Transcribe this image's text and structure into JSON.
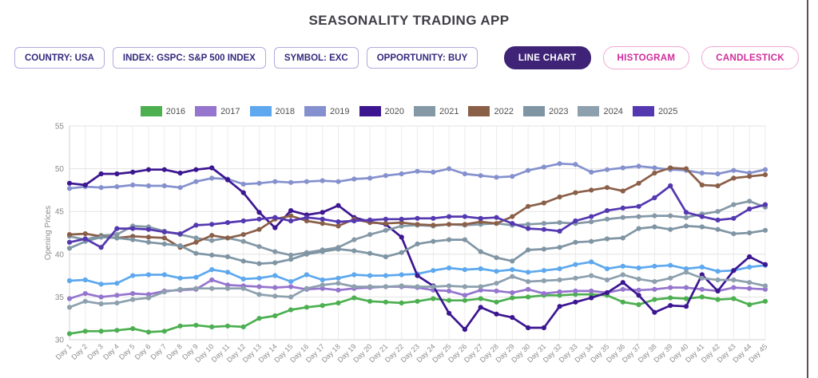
{
  "app": {
    "title": "SEASONALITY TRADING APP"
  },
  "filters": [
    {
      "key": "country",
      "label": "COUNTRY:",
      "value": "USA"
    },
    {
      "key": "index",
      "label": "INDEX:",
      "value": "GSPC: S&P 500 INDEX"
    },
    {
      "key": "symbol",
      "label": "SYMBOL:",
      "value": "EXC"
    },
    {
      "key": "opportunity",
      "label": "OPPORTUNITY:",
      "value": "BUY"
    }
  ],
  "view_buttons": [
    {
      "key": "line-chart",
      "label": "LINE CHART",
      "active": true
    },
    {
      "key": "histogram",
      "label": "HISTOGRAM",
      "active": false
    },
    {
      "key": "candlestick",
      "label": "CANDLESTICK",
      "active": false
    }
  ],
  "colors": {
    "title_text": "#3f3f46",
    "chip_border": "#b5a8de",
    "chip_text": "#33297d",
    "active_button_bg": "#3e2376",
    "pink_text": "#d12b9b",
    "pink_border": "#f2a8d2",
    "axis_text": "#8b8b8b",
    "grid_h": "#e3e3e3",
    "grid_v": "#ececec",
    "axis_line": "#d0d0d0"
  },
  "chart_data": {
    "type": "line",
    "title": "",
    "xlabel": "",
    "ylabel": "Opening Prices",
    "ylim": [
      30,
      55
    ],
    "yticks": [
      30,
      35,
      40,
      45,
      50,
      55
    ],
    "grid": true,
    "legend_position": "top",
    "x_categories": [
      "Day 1",
      "Day 2",
      "Day 3",
      "Day 4",
      "Day 5",
      "Day 6",
      "Day 7",
      "Day 8",
      "Day 9",
      "Day 10",
      "Day 11",
      "Day 12",
      "Day 13",
      "Day 14",
      "Day 15",
      "Day 16",
      "Day 17",
      "Day 18",
      "Day 19",
      "Day 20",
      "Day 21",
      "Day 22",
      "Day 23",
      "Day 24",
      "Day 25",
      "Day 26",
      "Day 27",
      "Day 28",
      "Day 29",
      "Day 30",
      "Day 31",
      "Day 32",
      "Day 33",
      "Day 34",
      "Day 35",
      "Day 36",
      "Day 37",
      "Day 38",
      "Day 39",
      "Day 40",
      "Day 41",
      "Day 42",
      "Day 43",
      "Day 44",
      "Day 45"
    ],
    "series": [
      {
        "name": "2016",
        "color": "#4caf50",
        "values": [
          30.7,
          31.0,
          31.0,
          31.1,
          31.3,
          30.9,
          31.0,
          31.6,
          31.7,
          31.5,
          31.6,
          31.5,
          32.5,
          32.8,
          33.5,
          33.8,
          34.0,
          34.3,
          34.9,
          34.5,
          34.4,
          34.3,
          34.5,
          34.8,
          34.6,
          34.6,
          34.8,
          34.4,
          34.9,
          35.0,
          35.2,
          35.2,
          35.3,
          35.3,
          35.2,
          34.4,
          34.1,
          34.7,
          34.9,
          34.8,
          35.0,
          34.7,
          34.8,
          34.1,
          34.5
        ]
      },
      {
        "name": "2017",
        "color": "#9575cd",
        "values": [
          34.8,
          35.4,
          35.0,
          35.2,
          35.4,
          35.3,
          35.7,
          35.8,
          35.9,
          37.0,
          36.4,
          36.3,
          36.2,
          36.1,
          36.2,
          35.9,
          36.0,
          35.8,
          36.0,
          36.1,
          36.2,
          36.2,
          36.1,
          35.8,
          35.7,
          35.2,
          35.8,
          35.7,
          35.5,
          35.9,
          35.4,
          35.6,
          35.7,
          35.7,
          35.5,
          35.9,
          35.8,
          35.9,
          36.1,
          36.1,
          35.9,
          35.7,
          36.1,
          36.0,
          35.9
        ]
      },
      {
        "name": "2018",
        "color": "#5da8ee",
        "values": [
          36.9,
          37.0,
          36.5,
          36.6,
          37.5,
          37.6,
          37.6,
          37.2,
          37.3,
          38.2,
          37.9,
          37.1,
          37.2,
          37.5,
          36.8,
          37.6,
          37.0,
          37.2,
          37.6,
          37.5,
          37.5,
          37.6,
          37.7,
          38.1,
          38.4,
          38.2,
          38.3,
          38.0,
          38.2,
          37.9,
          38.1,
          38.3,
          38.8,
          39.1,
          38.3,
          38.6,
          38.4,
          38.6,
          38.7,
          38.3,
          38.5,
          38.0,
          38.1,
          38.5,
          38.7
        ]
      },
      {
        "name": "2019",
        "color": "#8591ce",
        "values": [
          47.7,
          47.9,
          47.8,
          47.9,
          48.1,
          48.0,
          48.0,
          47.8,
          48.5,
          48.9,
          48.8,
          48.2,
          48.3,
          48.5,
          48.4,
          48.5,
          48.6,
          48.5,
          48.8,
          48.9,
          49.2,
          49.4,
          49.7,
          49.6,
          50.0,
          49.4,
          49.2,
          49.0,
          49.1,
          49.8,
          50.2,
          50.6,
          50.5,
          49.6,
          49.9,
          50.1,
          50.3,
          50.1,
          49.9,
          49.8,
          49.5,
          49.4,
          49.8,
          49.5,
          49.9
        ]
      },
      {
        "name": "2020",
        "color": "#3c1691",
        "values": [
          48.3,
          48.1,
          49.4,
          49.4,
          49.6,
          49.9,
          49.9,
          49.5,
          49.9,
          50.1,
          48.7,
          47.2,
          44.9,
          43.1,
          45.1,
          44.6,
          44.9,
          45.7,
          44.3,
          43.8,
          43.5,
          42.0,
          37.5,
          36.3,
          33.1,
          31.2,
          33.8,
          33.0,
          32.6,
          31.4,
          31.4,
          33.9,
          34.4,
          34.9,
          35.5,
          36.7,
          35.2,
          33.2,
          34.0,
          33.9,
          37.6,
          35.7,
          38.1,
          39.7,
          38.8
        ]
      },
      {
        "name": "2021",
        "color": "#8498a6",
        "values": [
          42.1,
          41.7,
          42.2,
          42.3,
          43.3,
          43.2,
          42.7,
          42.3,
          41.9,
          41.6,
          41.9,
          41.5,
          40.9,
          40.3,
          39.9,
          40.2,
          40.5,
          40.8,
          41.7,
          42.3,
          42.8,
          43.3,
          43.4,
          43.3,
          43.5,
          43.4,
          43.5,
          43.6,
          43.4,
          43.5,
          43.6,
          43.7,
          43.6,
          43.8,
          44.1,
          44.3,
          44.4,
          44.5,
          44.5,
          44.3,
          44.7,
          45.0,
          45.8,
          46.2,
          45.5
        ]
      },
      {
        "name": "2022",
        "color": "#8a5f48",
        "values": [
          42.3,
          42.4,
          42.1,
          41.9,
          42.1,
          42.0,
          41.9,
          40.8,
          41.4,
          42.2,
          41.9,
          42.3,
          42.9,
          44.1,
          44.5,
          43.9,
          43.6,
          43.3,
          44.1,
          43.7,
          43.6,
          43.7,
          43.5,
          43.4,
          43.5,
          43.5,
          43.8,
          43.6,
          44.4,
          45.6,
          46.0,
          46.7,
          47.2,
          47.5,
          47.8,
          47.4,
          48.3,
          49.5,
          50.1,
          50.0,
          48.1,
          48.0,
          48.9,
          49.1,
          49.3
        ]
      },
      {
        "name": "2023",
        "color": "#7f95a4",
        "values": [
          40.7,
          41.5,
          42.0,
          41.9,
          41.7,
          41.4,
          41.2,
          41.0,
          40.1,
          39.9,
          39.7,
          39.2,
          38.9,
          39.0,
          39.4,
          40.0,
          40.3,
          40.6,
          40.4,
          40.1,
          39.7,
          40.2,
          41.2,
          41.5,
          41.7,
          41.7,
          40.3,
          39.6,
          39.2,
          40.5,
          40.6,
          40.8,
          41.4,
          41.5,
          41.8,
          41.9,
          43.0,
          43.2,
          42.9,
          43.3,
          43.2,
          42.9,
          42.4,
          42.5,
          42.8
        ]
      },
      {
        "name": "2024",
        "color": "#8da0ae",
        "values": [
          33.8,
          34.5,
          34.2,
          34.3,
          34.7,
          34.9,
          35.6,
          35.9,
          36.0,
          36.0,
          36.0,
          36.0,
          35.3,
          35.1,
          35.0,
          36.0,
          36.4,
          36.6,
          36.2,
          36.2,
          36.2,
          36.3,
          36.2,
          36.2,
          36.3,
          36.2,
          36.2,
          36.6,
          37.4,
          36.8,
          36.9,
          37.0,
          37.2,
          37.5,
          37.0,
          37.6,
          37.1,
          36.8,
          37.2,
          37.9,
          37.2,
          37.0,
          37.0,
          36.7,
          36.3
        ]
      },
      {
        "name": "2025",
        "color": "#5438b0",
        "values": [
          41.4,
          41.8,
          40.8,
          43.0,
          43.0,
          42.9,
          42.6,
          42.4,
          43.4,
          43.5,
          43.7,
          43.9,
          44.1,
          44.3,
          43.9,
          44.3,
          44.1,
          43.8,
          43.9,
          44.0,
          44.1,
          44.1,
          44.2,
          44.2,
          44.4,
          44.4,
          44.2,
          44.3,
          43.6,
          43.0,
          42.9,
          42.7,
          43.9,
          44.4,
          45.1,
          45.4,
          45.6,
          46.6,
          48.0,
          44.9,
          44.4,
          44.0,
          44.2,
          45.3,
          45.8
        ]
      }
    ]
  }
}
